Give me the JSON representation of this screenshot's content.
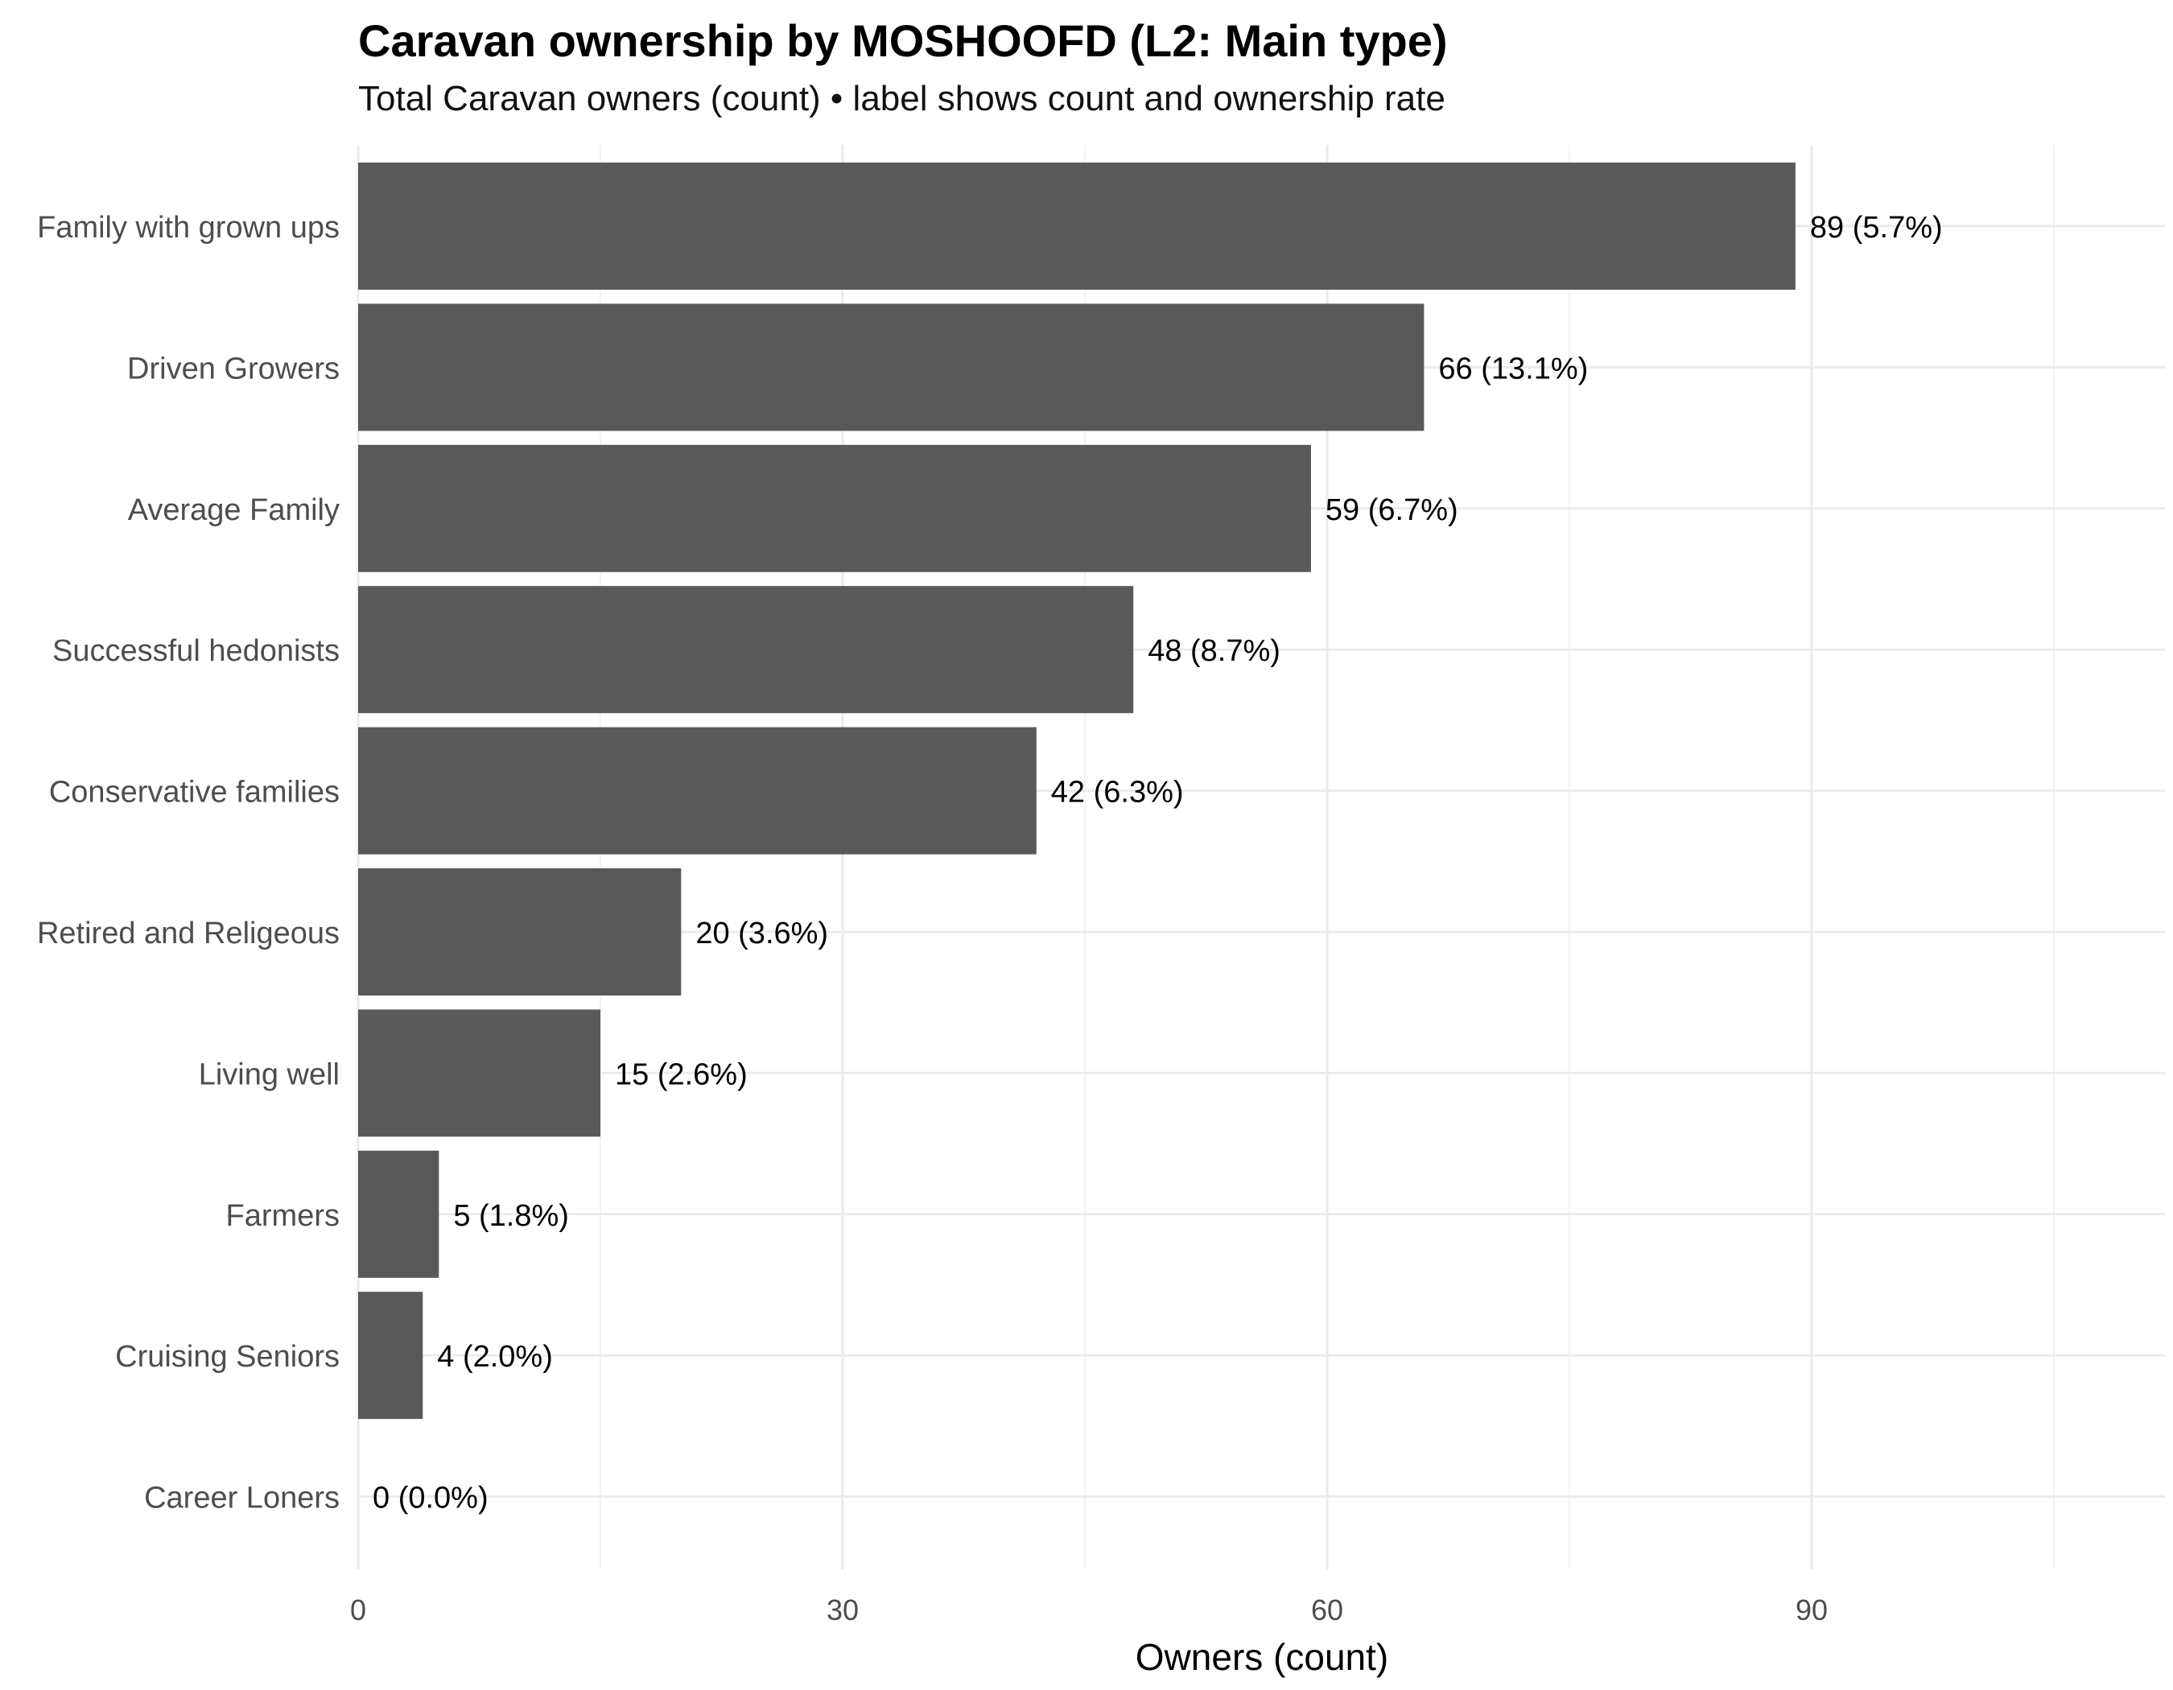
{
  "chart_data": {
    "type": "bar",
    "orientation": "horizontal",
    "title": "Caravan ownership by MOSHOOFD (L2: Main type)",
    "subtitle": "Total Caravan owners (count) • label shows count and ownership rate",
    "xlabel": "Owners (count)",
    "ylabel": "",
    "xlim": [
      0,
      112
    ],
    "x_ticks": [
      0,
      30,
      60,
      90
    ],
    "grid": true,
    "categories": [
      "Family with grown ups",
      "Driven Growers",
      "Average Family",
      "Successful hedonists",
      "Conservative families",
      "Retired and Religeous",
      "Living well",
      "Farmers",
      "Cruising Seniors",
      "Career Loners"
    ],
    "values": [
      89,
      66,
      59,
      48,
      42,
      20,
      15,
      5,
      4,
      0
    ],
    "data_labels": [
      "89 (5.7%)",
      "66 (13.1%)",
      "59 (6.7%)",
      "48 (8.7%)",
      "42 (6.3%)",
      "20 (3.6%)",
      "15 (2.6%)",
      "5 (1.8%)",
      "4 (2.0%)",
      "0 (0.0%)"
    ],
    "colors": {
      "bar": "#595959",
      "grid_major": "#ebebeb",
      "grid_minor": "#f3f3f3",
      "axis_text": "#4d4d4d",
      "label_text": "#000000"
    }
  }
}
